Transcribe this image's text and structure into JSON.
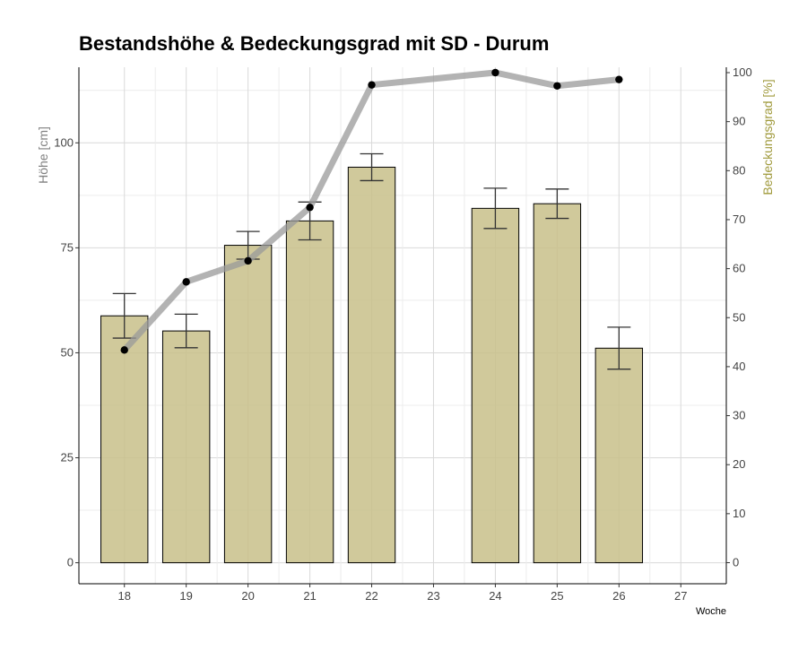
{
  "chart_data": {
    "type": "bar",
    "title": "Bestandshöhe & Bedeckungsgrad mit SD - Durum",
    "xlabel": "Woche",
    "ylabel": "Höhe [cm]",
    "y2label": "Bedeckungsgrad [%]",
    "categories": [
      "18",
      "19",
      "20",
      "21",
      "22",
      "23",
      "24",
      "25",
      "26",
      "27"
    ],
    "ylim": [
      -5,
      118
    ],
    "y2lim": [
      -4.3,
      101.1
    ],
    "yticks": [
      0,
      25,
      50,
      75,
      100
    ],
    "y2ticks": [
      0,
      10,
      20,
      30,
      40,
      50,
      60,
      70,
      80,
      90,
      100
    ],
    "grid": true,
    "series": [
      {
        "kind": "bar",
        "axis": "left",
        "x": [
          "18",
          "19",
          "20",
          "21",
          "22",
          "24",
          "25",
          "26"
        ],
        "values": [
          58.8,
          55.2,
          75.6,
          81.4,
          94.2,
          84.4,
          85.5,
          51.1
        ],
        "sd": [
          5.3,
          4.0,
          3.3,
          4.5,
          3.2,
          4.8,
          3.5,
          5.0
        ]
      },
      {
        "kind": "line",
        "axis": "right",
        "x": [
          "18",
          "19",
          "20",
          "21",
          "22",
          "24",
          "25",
          "26"
        ],
        "values": [
          43.4,
          57.3,
          61.6,
          72.5,
          97.5,
          100.0,
          97.3,
          98.6
        ]
      }
    ],
    "colors": {
      "bar_fill": "#c8c08a",
      "bar_stroke": "#000000",
      "line": "#999999",
      "point": "#000000",
      "grid": "#d9d9d9",
      "y2_title": "#a09a3c",
      "y_title": "#808080"
    }
  }
}
